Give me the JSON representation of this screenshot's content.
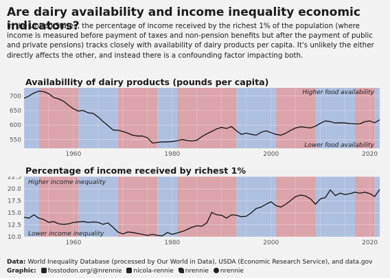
{
  "header": {
    "title": "Are dairy availability and income inequality economic indicators?",
    "subtitle": "In the United States, the percentage of income received by the richest 1% of the population (where income is measured before payment of taxes and non-pension benefits but after the payment of public and private pensions) tracks closely with availability of dairy products per capita. It's unlikely the either directly affects the other, and instead there is a confounding factor impacting both."
  },
  "colors": {
    "red_band": "#dba3aa",
    "blue_band": "#aec0e0",
    "line": "#111111"
  },
  "party_periods": [
    {
      "start": 1950,
      "end": 1953,
      "party": "D"
    },
    {
      "start": 1953,
      "end": 1961,
      "party": "R"
    },
    {
      "start": 1961,
      "end": 1969,
      "party": "D"
    },
    {
      "start": 1969,
      "end": 1977,
      "party": "R"
    },
    {
      "start": 1977,
      "end": 1981,
      "party": "D"
    },
    {
      "start": 1981,
      "end": 1993,
      "party": "R"
    },
    {
      "start": 1993,
      "end": 2001,
      "party": "D"
    },
    {
      "start": 2001,
      "end": 2009,
      "party": "R"
    },
    {
      "start": 2009,
      "end": 2017,
      "party": "D"
    },
    {
      "start": 2017,
      "end": 2021,
      "party": "R"
    },
    {
      "start": 2021,
      "end": 2022,
      "party": "D"
    }
  ],
  "chart_data": [
    {
      "type": "line",
      "title": "Availabillity of dairy products (pounds per capita)",
      "xlim": [
        1950,
        2022
      ],
      "ylim": [
        520,
        728
      ],
      "yticks": [
        550,
        600,
        650,
        700
      ],
      "xticks": [
        1960,
        1980,
        2000,
        2020
      ],
      "annotation_top": "Higher food availability",
      "annotation_bottom": "Lower food availability",
      "x": [
        1950,
        1951,
        1952,
        1953,
        1954,
        1955,
        1956,
        1957,
        1958,
        1959,
        1960,
        1961,
        1962,
        1963,
        1964,
        1965,
        1966,
        1967,
        1968,
        1969,
        1970,
        1971,
        1972,
        1973,
        1974,
        1975,
        1976,
        1977,
        1978,
        1979,
        1980,
        1981,
        1982,
        1983,
        1984,
        1985,
        1986,
        1987,
        1988,
        1989,
        1990,
        1991,
        1992,
        1993,
        1994,
        1995,
        1996,
        1997,
        1998,
        1999,
        2000,
        2001,
        2002,
        2003,
        2004,
        2005,
        2006,
        2007,
        2008,
        2009,
        2010,
        2011,
        2012,
        2013,
        2014,
        2015,
        2016,
        2017,
        2018,
        2019,
        2020,
        2021,
        2022
      ],
      "y": [
        692,
        700,
        710,
        717,
        715,
        708,
        695,
        690,
        682,
        668,
        656,
        648,
        650,
        642,
        640,
        628,
        612,
        598,
        583,
        582,
        578,
        572,
        565,
        562,
        562,
        556,
        538,
        540,
        542,
        542,
        543,
        546,
        550,
        547,
        545,
        548,
        560,
        570,
        578,
        587,
        592,
        588,
        595,
        580,
        568,
        572,
        568,
        565,
        575,
        580,
        574,
        568,
        565,
        572,
        582,
        590,
        594,
        592,
        590,
        596,
        606,
        614,
        612,
        607,
        608,
        607,
        605,
        604,
        604,
        612,
        614,
        608,
        618
      ]
    },
    {
      "type": "line",
      "title": "Percentage of income received by richest 1%",
      "xlim": [
        1950,
        2022
      ],
      "ylim": [
        10,
        22.6
      ],
      "yticks": [
        10.0,
        12.5,
        15.0,
        17.5,
        20.0,
        22.5
      ],
      "xticks": [
        1960,
        1980,
        2000,
        2020
      ],
      "annotation_top": "Higher income inequality",
      "annotation_bottom": "Lower income inequality",
      "x": [
        1950,
        1951,
        1952,
        1953,
        1954,
        1955,
        1956,
        1957,
        1958,
        1959,
        1960,
        1961,
        1962,
        1963,
        1964,
        1965,
        1966,
        1967,
        1968,
        1969,
        1970,
        1971,
        1972,
        1973,
        1974,
        1975,
        1976,
        1977,
        1978,
        1979,
        1980,
        1981,
        1982,
        1983,
        1984,
        1985,
        1986,
        1987,
        1988,
        1989,
        1990,
        1991,
        1992,
        1993,
        1994,
        1995,
        1996,
        1997,
        1998,
        1999,
        2000,
        2001,
        2002,
        2003,
        2004,
        2005,
        2006,
        2007,
        2008,
        2009,
        2010,
        2011,
        2012,
        2013,
        2014,
        2015,
        2016,
        2017,
        2018,
        2019,
        2020,
        2021,
        2022
      ],
      "y": [
        14.1,
        13.9,
        14.6,
        13.9,
        13.6,
        13.0,
        13.2,
        12.7,
        12.6,
        12.7,
        13.0,
        13.1,
        13.2,
        13.0,
        13.1,
        13.0,
        12.6,
        12.9,
        12.0,
        11.0,
        10.6,
        11.0,
        10.9,
        10.7,
        10.5,
        10.3,
        10.5,
        10.3,
        10.2,
        10.9,
        10.5,
        10.8,
        11.1,
        11.5,
        12.0,
        12.3,
        12.2,
        12.9,
        15.1,
        14.6,
        14.5,
        13.9,
        14.6,
        14.5,
        14.2,
        14.3,
        15.0,
        15.9,
        16.2,
        16.8,
        17.3,
        16.5,
        16.2,
        16.8,
        17.6,
        18.4,
        18.7,
        18.5,
        17.9,
        16.8,
        17.9,
        18.2,
        19.8,
        18.6,
        19.1,
        18.8,
        19.0,
        19.3,
        19.1,
        19.3,
        19.0,
        18.4,
        19.9
      ]
    }
  ],
  "footer": {
    "data_label": "Data:",
    "data_text": "World Inequality Database (processed by Our World in Data), USDA (Economic Research Service), and data.gov",
    "graphic_label": "Graphic:",
    "handle_mastodon": "fosstodon.org/@nrennie",
    "handle_linkedin": "nicola-rennie",
    "handle_bluesky": "nrennie",
    "handle_github": "nrennie"
  }
}
